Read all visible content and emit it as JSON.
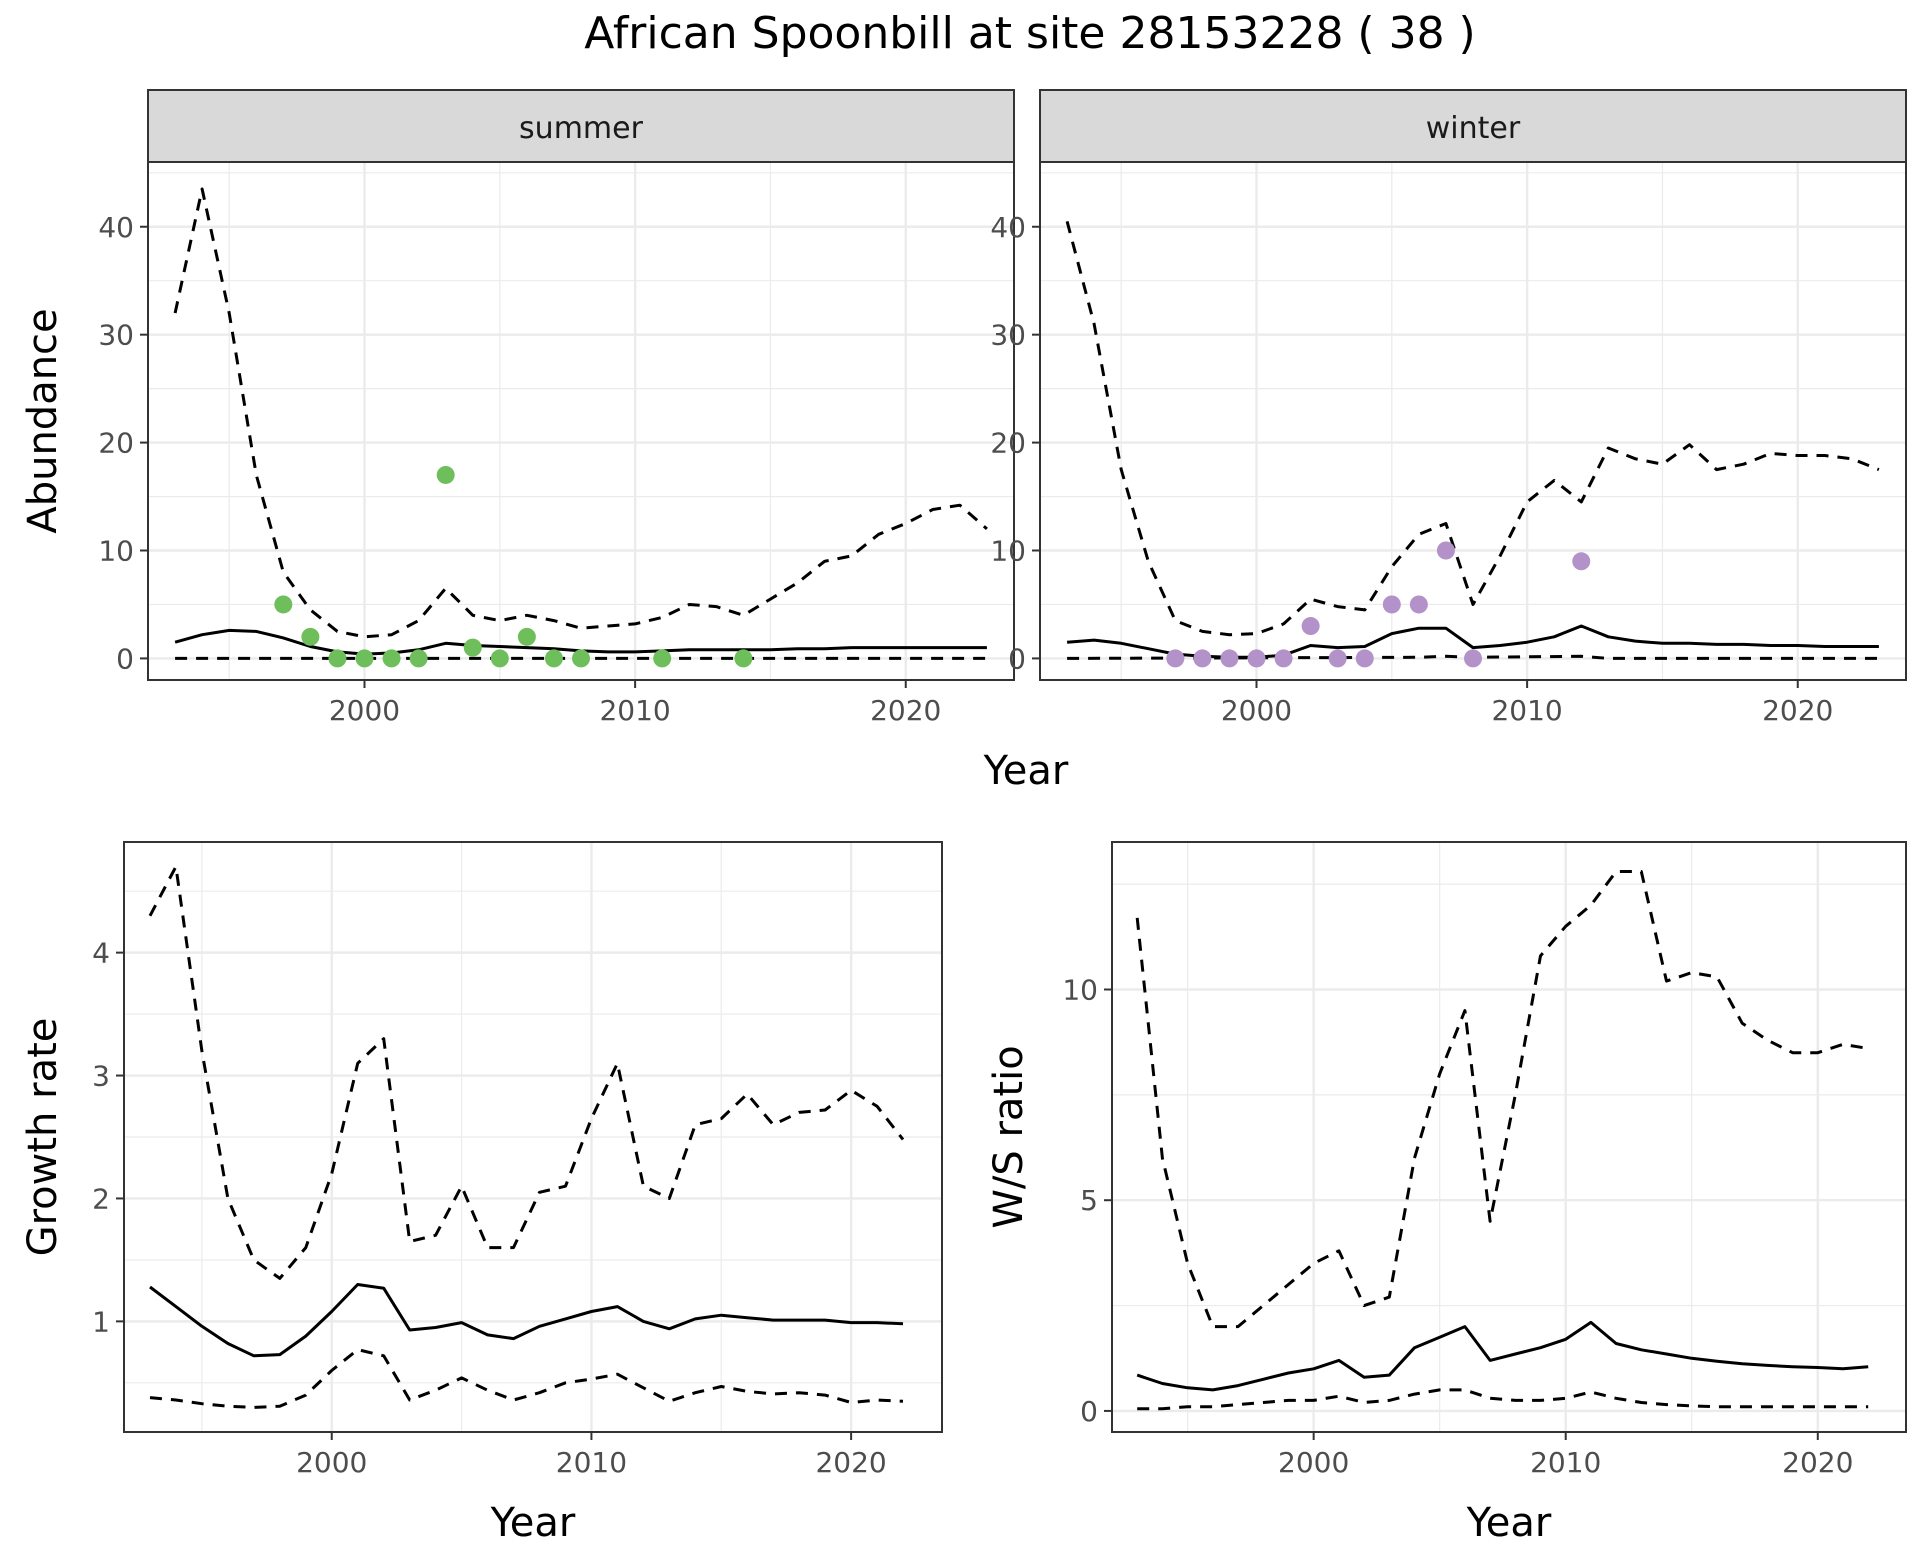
{
  "figure": {
    "title": "African Spoonbill at site 28153228 ( 38 )"
  },
  "colors": {
    "summer_points": "#6ebf5b",
    "winter_points": "#b391c9",
    "strip_background": "#d9d9d9",
    "grid": "#ebebeb",
    "line": "#000000"
  },
  "chart_data": [
    {
      "type": "line",
      "panel": "summer",
      "xlabel": "Year",
      "ylabel": "Abundance",
      "xlim": [
        1992,
        2024
      ],
      "ylim": [
        -2,
        46
      ],
      "xticks": [
        2000,
        2010,
        2020
      ],
      "yticks": [
        0,
        10,
        20,
        30,
        40
      ],
      "grid": true,
      "series": [
        {
          "role": "estimate",
          "style": "solid",
          "x": [
            1993,
            1994,
            1995,
            1996,
            1997,
            1998,
            1999,
            2000,
            2001,
            2002,
            2003,
            2004,
            2005,
            2006,
            2007,
            2008,
            2009,
            2010,
            2011,
            2012,
            2013,
            2014,
            2015,
            2016,
            2017,
            2018,
            2019,
            2020,
            2021,
            2022,
            2023
          ],
          "y": [
            1.5,
            2.2,
            2.6,
            2.5,
            1.9,
            1.1,
            0.6,
            0.4,
            0.5,
            0.8,
            1.4,
            1.2,
            1.1,
            1.0,
            0.9,
            0.7,
            0.6,
            0.6,
            0.7,
            0.8,
            0.8,
            0.8,
            0.8,
            0.9,
            0.9,
            1.0,
            1.0,
            1.0,
            1.0,
            1.0,
            1.0
          ]
        },
        {
          "role": "upper",
          "style": "dashed",
          "x": [
            1993,
            1994,
            1995,
            1996,
            1997,
            1998,
            1999,
            2000,
            2001,
            2002,
            2003,
            2004,
            2005,
            2006,
            2007,
            2008,
            2009,
            2010,
            2011,
            2012,
            2013,
            2014,
            2015,
            2016,
            2017,
            2018,
            2019,
            2020,
            2021,
            2022,
            2023
          ],
          "y": [
            32,
            43.5,
            32,
            17,
            8,
            4.5,
            2.5,
            2.0,
            2.2,
            3.5,
            6.5,
            4.0,
            3.5,
            4.0,
            3.5,
            2.8,
            3.0,
            3.2,
            3.8,
            5.0,
            4.8,
            4.0,
            5.5,
            7.0,
            9.0,
            9.5,
            11.5,
            12.5,
            13.8,
            14.2,
            12.0
          ]
        },
        {
          "role": "lower",
          "style": "dashed",
          "x": [
            1993,
            2023
          ],
          "y": [
            0,
            0
          ]
        }
      ],
      "points": {
        "x": [
          1997,
          1998,
          1999,
          2000,
          2001,
          2002,
          2003,
          2004,
          2005,
          2006,
          2007,
          2008,
          2011,
          2014
        ],
        "y": [
          5,
          2,
          0,
          0,
          0,
          0,
          17,
          1,
          0,
          2,
          0,
          0,
          0,
          0
        ]
      }
    },
    {
      "type": "line",
      "panel": "winter",
      "xlabel": "Year",
      "ylabel": "Abundance",
      "xlim": [
        1992,
        2024
      ],
      "ylim": [
        -2,
        46
      ],
      "xticks": [
        2000,
        2010,
        2020
      ],
      "yticks": [
        0,
        10,
        20,
        30,
        40
      ],
      "grid": true,
      "series": [
        {
          "role": "estimate",
          "style": "solid",
          "x": [
            1993,
            1994,
            1995,
            1996,
            1997,
            1998,
            1999,
            2000,
            2001,
            2002,
            2003,
            2004,
            2005,
            2006,
            2007,
            2008,
            2009,
            2010,
            2011,
            2012,
            2013,
            2014,
            2015,
            2016,
            2017,
            2018,
            2019,
            2020,
            2021,
            2022,
            2023
          ],
          "y": [
            1.5,
            1.7,
            1.4,
            0.9,
            0.4,
            0.2,
            0.1,
            0.1,
            0.3,
            1.2,
            1.0,
            1.1,
            2.3,
            2.8,
            2.8,
            1.0,
            1.2,
            1.5,
            2.0,
            3.0,
            2.0,
            1.6,
            1.4,
            1.4,
            1.3,
            1.3,
            1.2,
            1.2,
            1.1,
            1.1,
            1.1
          ]
        },
        {
          "role": "upper",
          "style": "dashed",
          "x": [
            1993,
            1994,
            1995,
            1996,
            1997,
            1998,
            1999,
            2000,
            2001,
            2002,
            2003,
            2004,
            2005,
            2006,
            2007,
            2008,
            2009,
            2010,
            2011,
            2012,
            2013,
            2014,
            2015,
            2016,
            2017,
            2018,
            2019,
            2020,
            2021,
            2022,
            2023
          ],
          "y": [
            40.5,
            31,
            17.5,
            9,
            3.5,
            2.5,
            2.2,
            2.3,
            3.2,
            5.5,
            4.8,
            4.5,
            8.5,
            11.5,
            12.5,
            5.0,
            9.5,
            14.5,
            16.5,
            14.5,
            19.5,
            18.5,
            18.0,
            19.8,
            17.5,
            18.0,
            19.0,
            18.8,
            18.8,
            18.5,
            17.5
          ]
        },
        {
          "role": "lower",
          "style": "dashed",
          "x": [
            1993,
            2006,
            2007,
            2008,
            2012,
            2013,
            2023
          ],
          "y": [
            0,
            0.1,
            0.2,
            0.1,
            0.2,
            0,
            0
          ]
        }
      ],
      "points": {
        "x": [
          1997,
          1998,
          1999,
          2000,
          2001,
          2002,
          2003,
          2004,
          2005,
          2006,
          2007,
          2008,
          2012
        ],
        "y": [
          0,
          0,
          0,
          0,
          0,
          3,
          0,
          0,
          5,
          5,
          10,
          0,
          9
        ]
      }
    },
    {
      "type": "line",
      "panel": "growth",
      "xlabel": "Year",
      "ylabel": "Growth rate",
      "xlim": [
        1992,
        2023.5
      ],
      "ylim": [
        0.1,
        4.9
      ],
      "xticks": [
        2000,
        2010,
        2020
      ],
      "yticks": [
        1,
        2,
        3,
        4
      ],
      "grid": true,
      "series": [
        {
          "role": "estimate",
          "style": "solid",
          "x": [
            1993,
            1994,
            1995,
            1996,
            1997,
            1998,
            1999,
            2000,
            2001,
            2002,
            2003,
            2004,
            2005,
            2006,
            2007,
            2008,
            2009,
            2010,
            2011,
            2012,
            2013,
            2014,
            2015,
            2016,
            2017,
            2018,
            2019,
            2020,
            2021,
            2022
          ],
          "y": [
            1.28,
            1.12,
            0.96,
            0.82,
            0.72,
            0.73,
            0.88,
            1.08,
            1.3,
            1.27,
            0.93,
            0.95,
            0.99,
            0.89,
            0.86,
            0.96,
            1.02,
            1.08,
            1.12,
            1.0,
            0.94,
            1.02,
            1.05,
            1.03,
            1.01,
            1.01,
            1.01,
            0.99,
            0.99,
            0.98
          ]
        },
        {
          "role": "upper",
          "style": "dashed",
          "x": [
            1993,
            1994,
            1995,
            1996,
            1997,
            1998,
            1999,
            2000,
            2001,
            2002,
            2003,
            2004,
            2005,
            2006,
            2007,
            2008,
            2009,
            2010,
            2011,
            2012,
            2013,
            2014,
            2015,
            2016,
            2017,
            2018,
            2019,
            2020,
            2021,
            2022
          ],
          "y": [
            4.3,
            4.7,
            3.2,
            2.0,
            1.5,
            1.35,
            1.6,
            2.2,
            3.1,
            3.3,
            1.65,
            1.7,
            2.1,
            1.6,
            1.6,
            2.05,
            2.1,
            2.65,
            3.1,
            2.1,
            2.0,
            2.6,
            2.65,
            2.85,
            2.6,
            2.7,
            2.72,
            2.88,
            2.75,
            2.48
          ]
        },
        {
          "role": "lower",
          "style": "dashed",
          "x": [
            1993,
            1994,
            1995,
            1996,
            1997,
            1998,
            1999,
            2000,
            2001,
            2002,
            2003,
            2004,
            2005,
            2006,
            2007,
            2008,
            2009,
            2010,
            2011,
            2012,
            2013,
            2014,
            2015,
            2016,
            2017,
            2018,
            2019,
            2020,
            2021,
            2022
          ],
          "y": [
            0.38,
            0.36,
            0.33,
            0.31,
            0.3,
            0.31,
            0.4,
            0.6,
            0.77,
            0.72,
            0.36,
            0.44,
            0.54,
            0.44,
            0.36,
            0.42,
            0.5,
            0.53,
            0.57,
            0.46,
            0.35,
            0.42,
            0.47,
            0.43,
            0.41,
            0.42,
            0.4,
            0.34,
            0.36,
            0.35
          ]
        }
      ]
    },
    {
      "type": "line",
      "panel": "ws_ratio",
      "xlabel": "Year",
      "ylabel": "W/S ratio",
      "xlim": [
        1992,
        2023.5
      ],
      "ylim": [
        -0.5,
        13.5
      ],
      "xticks": [
        2000,
        2010,
        2020
      ],
      "yticks": [
        0,
        5,
        10
      ],
      "grid": true,
      "series": [
        {
          "role": "estimate",
          "style": "solid",
          "x": [
            1993,
            1994,
            1995,
            1996,
            1997,
            1998,
            1999,
            2000,
            2001,
            2002,
            2003,
            2004,
            2005,
            2006,
            2007,
            2008,
            2009,
            2010,
            2011,
            2012,
            2013,
            2014,
            2015,
            2016,
            2017,
            2018,
            2019,
            2020,
            2021,
            2022
          ],
          "y": [
            0.85,
            0.65,
            0.55,
            0.5,
            0.6,
            0.75,
            0.9,
            1.0,
            1.2,
            0.8,
            0.85,
            1.5,
            1.75,
            2.0,
            1.2,
            1.35,
            1.5,
            1.7,
            2.1,
            1.6,
            1.45,
            1.35,
            1.25,
            1.18,
            1.12,
            1.08,
            1.05,
            1.03,
            1.0,
            1.05
          ]
        },
        {
          "role": "upper",
          "style": "dashed",
          "x": [
            1993,
            1994,
            1995,
            1996,
            1997,
            1998,
            1999,
            2000,
            2001,
            2002,
            2003,
            2004,
            2005,
            2006,
            2007,
            2008,
            2009,
            2010,
            2011,
            2012,
            2013,
            2014,
            2015,
            2016,
            2017,
            2018,
            2019,
            2020,
            2021,
            2022
          ],
          "y": [
            11.7,
            6.0,
            3.5,
            2.0,
            2.0,
            2.5,
            3.0,
            3.5,
            3.8,
            2.5,
            2.7,
            6.0,
            8.0,
            9.5,
            4.5,
            7.5,
            10.8,
            11.5,
            12.0,
            12.8,
            12.8,
            10.2,
            10.4,
            10.3,
            9.2,
            8.8,
            8.5,
            8.5,
            8.7,
            8.6
          ]
        },
        {
          "role": "lower",
          "style": "dashed",
          "x": [
            1993,
            1994,
            1995,
            1996,
            1997,
            1998,
            1999,
            2000,
            2001,
            2002,
            2003,
            2004,
            2005,
            2006,
            2007,
            2008,
            2009,
            2010,
            2011,
            2012,
            2013,
            2014,
            2015,
            2016,
            2017,
            2018,
            2019,
            2020,
            2021,
            2022
          ],
          "y": [
            0.05,
            0.05,
            0.1,
            0.1,
            0.15,
            0.2,
            0.25,
            0.25,
            0.35,
            0.2,
            0.25,
            0.4,
            0.5,
            0.5,
            0.3,
            0.25,
            0.25,
            0.3,
            0.45,
            0.3,
            0.2,
            0.15,
            0.12,
            0.1,
            0.1,
            0.1,
            0.1,
            0.1,
            0.1,
            0.1
          ]
        }
      ]
    }
  ],
  "panels": {
    "summer": {
      "strip": "summer"
    },
    "winter": {
      "strip": "winter"
    },
    "top_xlabel": "Year",
    "top_ylabel": "Abundance",
    "growth_xlabel": "Year",
    "growth_ylabel": "Growth rate",
    "ratio_xlabel": "Year",
    "ratio_ylabel": "W/S ratio"
  }
}
